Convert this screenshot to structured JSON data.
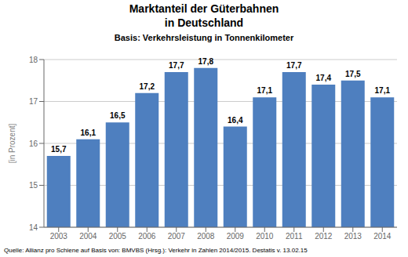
{
  "chart_data": {
    "type": "bar",
    "title": "Marktanteil der Güterbahnen\nin Deutschland",
    "subtitle": "Basis: Verkehrsleistung in Tonnenkilometer",
    "categories": [
      "2003",
      "2004",
      "2005",
      "2006",
      "2007",
      "2008",
      "2009",
      "2010",
      "2011",
      "2012",
      "2013",
      "2014"
    ],
    "values": [
      15.7,
      16.1,
      16.5,
      17.2,
      17.7,
      17.8,
      16.4,
      17.1,
      17.7,
      17.4,
      17.5,
      17.1
    ],
    "value_labels": [
      "15,7",
      "16,1",
      "16,5",
      "17,2",
      "17,7",
      "17,8",
      "16,4",
      "17,1",
      "17,7",
      "17,4",
      "17,5",
      "17,1"
    ],
    "data_labels": true,
    "color": "#4E7FBF",
    "ylabel": "[in Prozent]",
    "ylim": [
      14,
      18
    ],
    "yticks": [
      14,
      15,
      16,
      17,
      18
    ],
    "grid": true,
    "annotations": [
      "Quelle: Allianz pro Schiene auf Basis von: BMVBS (Hrsg.): Verkehr in Zahlen 2014/2015. Destatis v. 13.02.15"
    ]
  }
}
